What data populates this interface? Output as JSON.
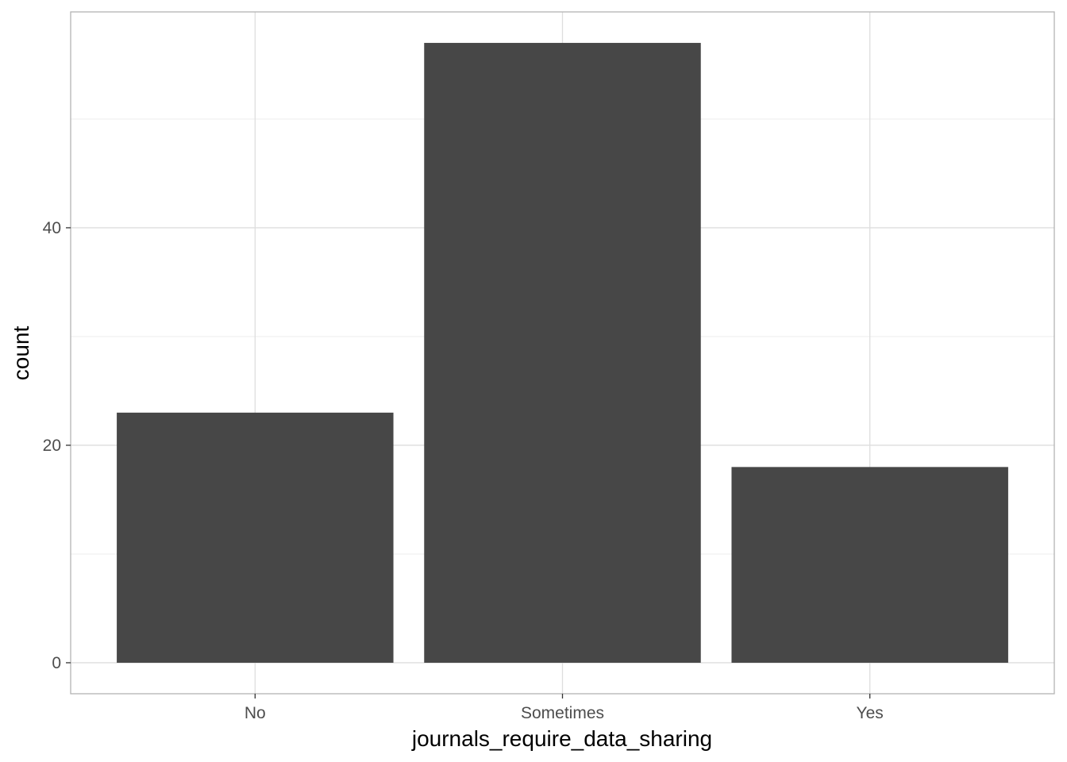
{
  "chart_data": {
    "type": "bar",
    "categories": [
      "No",
      "Sometimes",
      "Yes"
    ],
    "values": [
      23,
      57,
      18
    ],
    "xlabel": "journals_require_data_sharing",
    "ylabel": "count",
    "ylim": [
      -2.85,
      59.85
    ],
    "yticks": [
      0,
      20,
      40
    ],
    "yticks_minor": [
      10,
      30,
      50
    ],
    "grid": true,
    "theme": "light",
    "colors": {
      "bar": "#474747",
      "grid_major": "#dedede",
      "grid_minor": "#eeeeee",
      "panel_border": "#b3b3b3",
      "tick_text": "#4d4d4d",
      "title_text": "#000000",
      "background": "#ffffff"
    }
  }
}
